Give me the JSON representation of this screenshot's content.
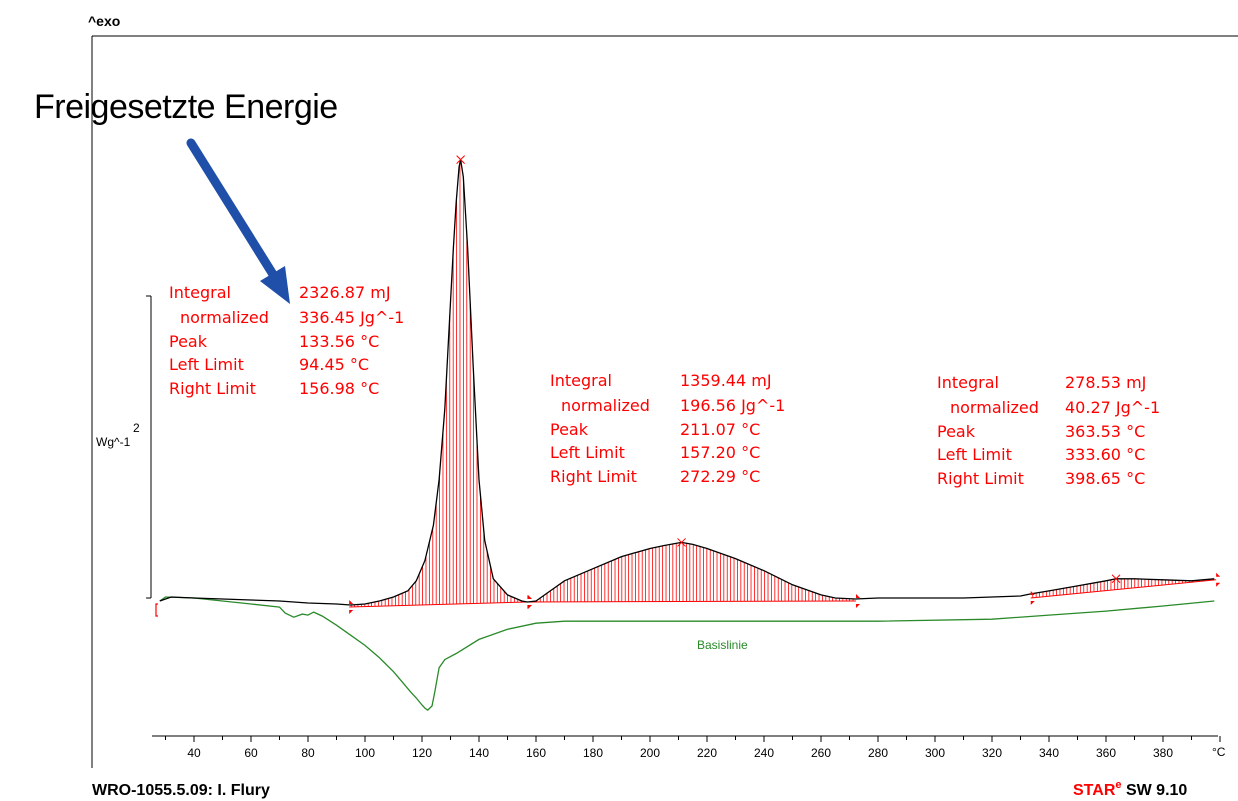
{
  "chart_data": {
    "type": "line",
    "x_unit": "°C",
    "y_label": "Wg^-1",
    "y_scale_value": "2",
    "exo_marker": "^exo",
    "xlim": [
      27,
      400
    ],
    "x_ticks": [
      40,
      60,
      80,
      100,
      120,
      140,
      160,
      180,
      200,
      220,
      240,
      260,
      280,
      300,
      320,
      340,
      360,
      380
    ],
    "series": [
      {
        "name": "",
        "color": "#000000",
        "x": [
          28,
          32,
          40,
          50,
          60,
          70,
          80,
          90,
          95,
          100,
          105,
          110,
          115,
          118,
          121,
          124,
          126,
          128,
          129.5,
          131,
          132,
          133,
          133.56,
          134.5,
          136,
          138,
          140,
          142,
          145,
          150,
          155,
          157,
          160,
          165,
          170,
          180,
          190,
          200,
          205,
          211,
          215,
          220,
          230,
          240,
          250,
          260,
          265,
          272,
          280,
          290,
          300,
          310,
          320,
          330,
          333.6,
          340,
          350,
          360,
          363.5,
          370,
          380,
          390,
          398
        ],
        "y": [
          0.0,
          0.04,
          0.03,
          0.02,
          0.01,
          0.0,
          -0.02,
          -0.03,
          -0.04,
          -0.03,
          0.0,
          0.04,
          0.1,
          0.2,
          0.4,
          0.75,
          1.2,
          1.9,
          2.7,
          3.5,
          3.95,
          4.3,
          4.37,
          4.2,
          3.5,
          2.3,
          1.2,
          0.6,
          0.22,
          0.06,
          0.0,
          -0.01,
          0.0,
          0.1,
          0.2,
          0.32,
          0.44,
          0.52,
          0.55,
          0.58,
          0.56,
          0.52,
          0.42,
          0.3,
          0.16,
          0.06,
          0.03,
          0.02,
          0.03,
          0.03,
          0.03,
          0.03,
          0.04,
          0.05,
          0.07,
          0.1,
          0.15,
          0.2,
          0.22,
          0.22,
          0.21,
          0.2,
          0.22
        ]
      },
      {
        "name": "Basislinie",
        "color": "#2a8a2a",
        "x": [
          28,
          30,
          40,
          50,
          60,
          70,
          72,
          75,
          78,
          80,
          82,
          85,
          90,
          95,
          100,
          105,
          110,
          113,
          116,
          118,
          120,
          121,
          122,
          123.5,
          124.5,
          126,
          128,
          132,
          140,
          150,
          160,
          170,
          200,
          240,
          280,
          320,
          340,
          360,
          380,
          398
        ],
        "y": [
          0.0,
          0.04,
          0.03,
          0.0,
          -0.03,
          -0.06,
          -0.12,
          -0.16,
          -0.13,
          -0.14,
          -0.11,
          -0.15,
          -0.24,
          -0.34,
          -0.44,
          -0.56,
          -0.7,
          -0.8,
          -0.9,
          -0.96,
          -1.03,
          -1.06,
          -1.08,
          -1.04,
          -0.9,
          -0.66,
          -0.58,
          -0.52,
          -0.38,
          -0.28,
          -0.22,
          -0.2,
          -0.2,
          -0.2,
          -0.2,
          -0.18,
          -0.14,
          -0.1,
          -0.05,
          0.0
        ]
      }
    ],
    "peaks": [
      {
        "left": 94.45,
        "right": 156.98,
        "peak": 133.56,
        "base_left": -0.06,
        "base_right": -0.01
      },
      {
        "left": 157.2,
        "right": 272.29,
        "peak": 211.07,
        "base_left": -0.01,
        "base_right": 0.0
      },
      {
        "left": 333.6,
        "right": 398.65,
        "peak": 363.53,
        "base_left": 0.03,
        "base_right": 0.21
      }
    ]
  },
  "annotations": [
    {
      "rows": [
        {
          "label": "Integral",
          "value": "2326.87 mJ"
        },
        {
          "label": "  normalized",
          "value": "336.45 Jg^-1"
        },
        {
          "label": "Peak",
          "value": "133.56 °C"
        },
        {
          "label": "Left Limit",
          "value": "94.45 °C"
        },
        {
          "label": "Right Limit",
          "value": "156.98 °C"
        }
      ]
    },
    {
      "rows": [
        {
          "label": "Integral",
          "value": "1359.44 mJ"
        },
        {
          "label": "  normalized",
          "value": "196.56 Jg^-1"
        },
        {
          "label": "Peak",
          "value": "211.07 °C"
        },
        {
          "label": "Left Limit",
          "value": "157.20 °C"
        },
        {
          "label": "Right Limit",
          "value": "272.29 °C"
        }
      ]
    },
    {
      "rows": [
        {
          "label": "Integral",
          "value": "278.53 mJ"
        },
        {
          "label": "  normalized",
          "value": "40.27 Jg^-1"
        },
        {
          "label": "Peak",
          "value": "363.53 °C"
        },
        {
          "label": "Left Limit",
          "value": "333.60 °C"
        },
        {
          "label": "Right Limit",
          "value": "398.65 °C"
        }
      ]
    }
  ],
  "callout": {
    "text": "Freigesetzte Energie",
    "arrow_color": "#1f4fa8"
  },
  "baseline_label": "Basislinie",
  "footer": {
    "left": "WRO-1055.5.09: I. Flury",
    "right_star": "STAR",
    "right_sup": "e",
    "right_rest": " SW 9.10"
  },
  "colors": {
    "curve": "#000000",
    "integration": "#ff0000",
    "baseline": "#2a8a2a"
  }
}
